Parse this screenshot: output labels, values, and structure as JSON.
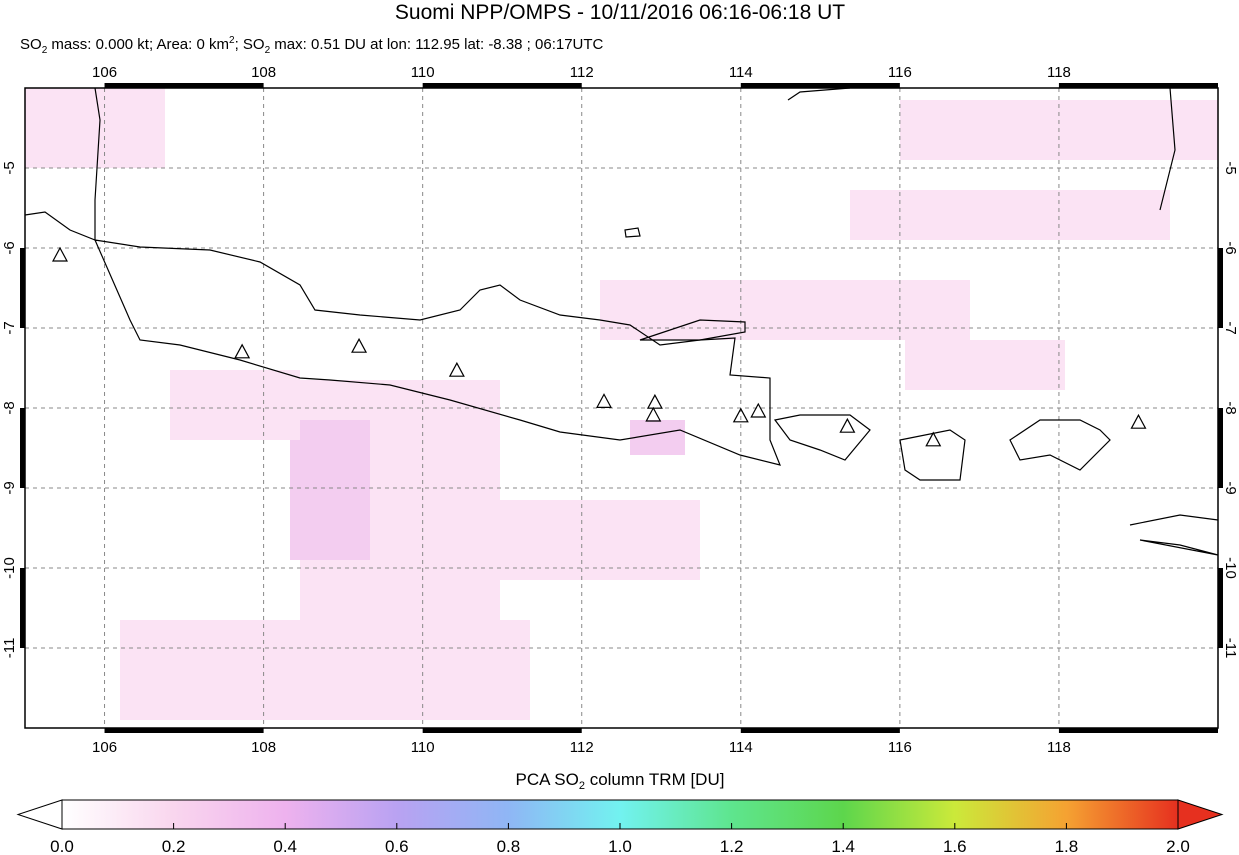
{
  "chart_data": {
    "type": "map",
    "title": "Suomi NPP/OMPS - 10/11/2016 06:16-06:18 UT",
    "subtitle_parts": [
      "SO",
      "2",
      " mass: 0.000 kt; Area: 0 km",
      "2",
      "; SO",
      "2",
      " max: 0.51 DU at lon: 112.95 lat: -8.38 ; 06:17UTC"
    ],
    "xlim": [
      105,
      120
    ],
    "ylim": [
      -12,
      -4
    ],
    "xticks": [
      106,
      108,
      110,
      112,
      114,
      116,
      118
    ],
    "yticks": [
      -5,
      -6,
      -7,
      -8,
      -9,
      -10,
      -11
    ],
    "grid": true,
    "volcanoes": {
      "lon": [
        105.44,
        107.73,
        109.2,
        110.43,
        112.28,
        112.92,
        112.9,
        114.0,
        114.22,
        115.34,
        116.42,
        119.0
      ],
      "lat": [
        -6.1,
        -7.31,
        -7.24,
        -7.54,
        -7.93,
        -7.94,
        -8.1,
        -8.11,
        -8.05,
        -8.24,
        -8.41,
        -8.19
      ]
    },
    "colorbar": {
      "label_parts": [
        "PCA SO",
        "2",
        " column TRM [DU]"
      ],
      "lim": [
        0,
        2
      ],
      "ticks": [
        {
          "value": 0,
          "label": "0.0"
        },
        {
          "value": 0.2,
          "label": "0.2"
        },
        {
          "value": 0.4,
          "label": "0.4"
        },
        {
          "value": 0.6,
          "label": "0.6"
        },
        {
          "value": 0.8,
          "label": "0.8"
        },
        {
          "value": 1,
          "label": "1.0"
        },
        {
          "value": 1.2,
          "label": "1.2"
        },
        {
          "value": 1.4,
          "label": "1.4"
        },
        {
          "value": 1.6,
          "label": "1.6"
        },
        {
          "value": 1.8,
          "label": "1.8"
        },
        {
          "value": 2,
          "label": "2.0"
        }
      ],
      "colors": [
        "#ffffff",
        "#f9d6ee",
        "#eeb2ee",
        "#b9a2f2",
        "#8fb6f5",
        "#72f2f0",
        "#5ee58e",
        "#5dd64c",
        "#cbe93a",
        "#f5a232",
        "#e6301f"
      ]
    }
  }
}
